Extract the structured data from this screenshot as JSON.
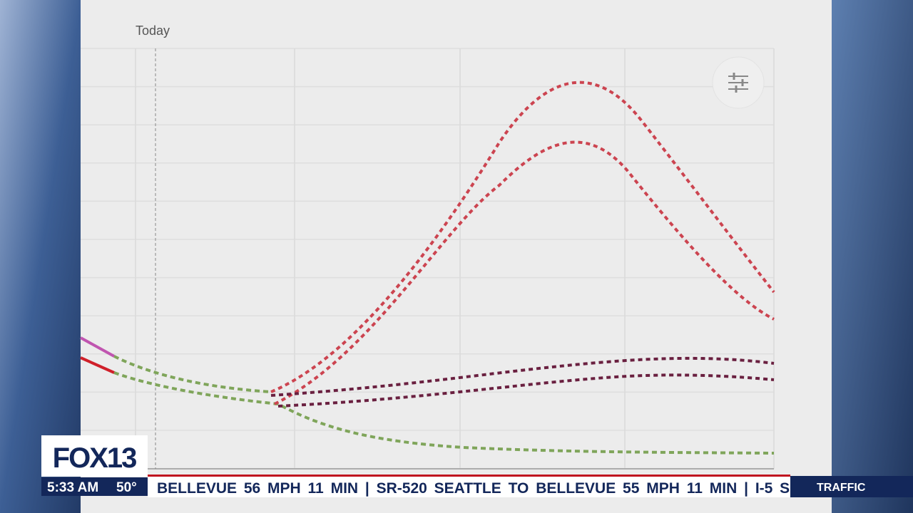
{
  "header": {
    "label": "Today"
  },
  "branding": {
    "logo": "FOX13",
    "time": "5:33 AM",
    "temperature": "50°"
  },
  "ticker": {
    "text": "BELLEVUE 56 MPH 11 MIN | SR-520 SEATTLE TO BELLEVUE 55 MPH 11 MIN | I-5 S",
    "section": "TRAFFIC"
  }
}
